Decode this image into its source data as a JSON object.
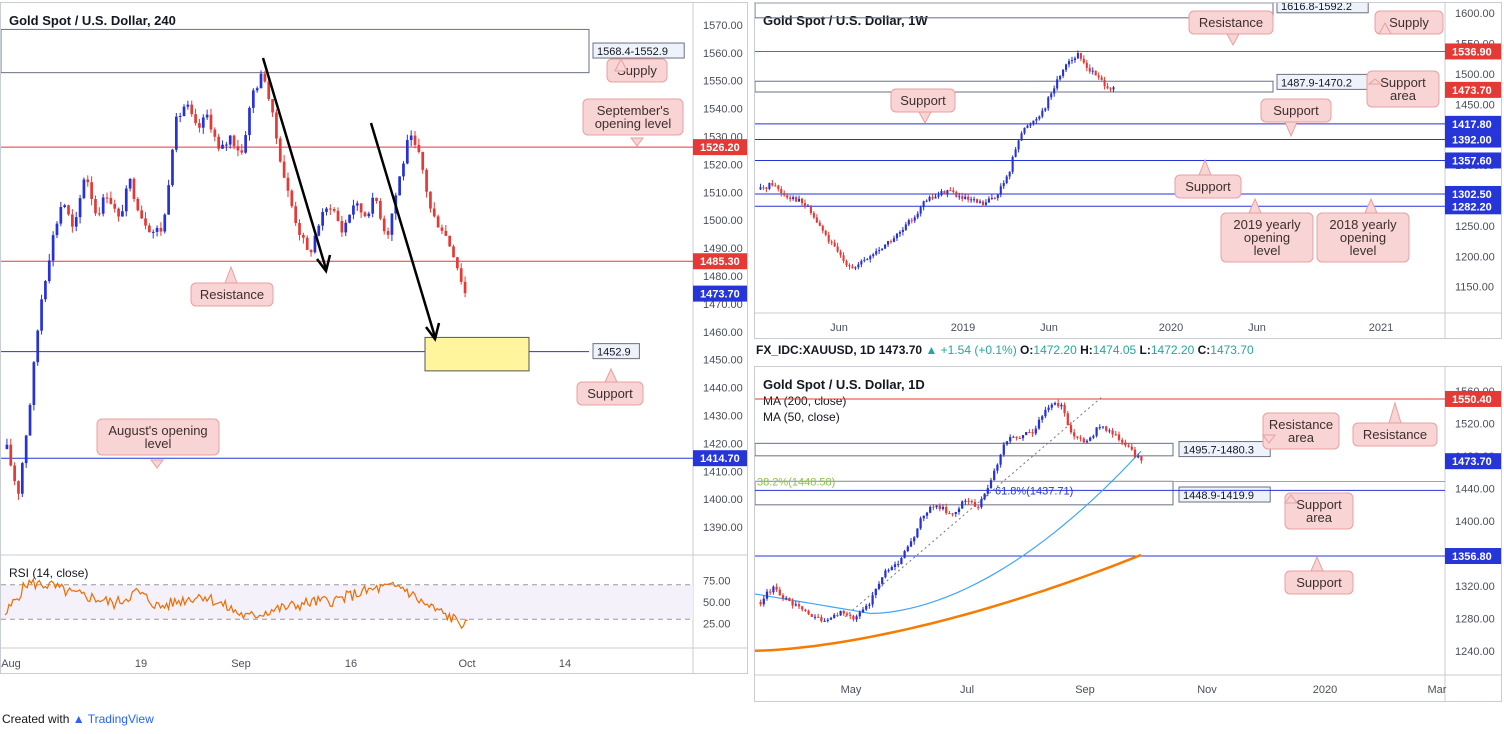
{
  "footer": {
    "created_with": "Created with",
    "brand": "TradingView"
  },
  "info_line": {
    "symbol": "FX_IDC:XAUUSD, 1D",
    "last": "1473.70",
    "change": "▲ +1.54 (+0.1%)",
    "o_label": "O:",
    "o": "1472.20",
    "h_label": "H:",
    "h": "1474.05",
    "l_label": "L:",
    "l": "1472.20",
    "c_label": "C:",
    "c": "1473.70"
  },
  "colors": {
    "red_line": "#e53935",
    "blue_line": "#2635d8",
    "up_candle": "#2631d6",
    "down_candle": "#e53935",
    "ann_fill": "#f8d4d4",
    "ann_stroke": "#e8a0a0",
    "rsi": "#ef6c00",
    "ma200": "#f57c00",
    "ma50": "#42a5f5",
    "fib": "#8bc34a",
    "highlight": "#fff59d"
  },
  "chart_data": [
    {
      "id": "h4",
      "type": "candlestick",
      "title": "Gold Spot / U.S. Dollar, 240",
      "ylim": [
        1380,
        1575
      ],
      "y_ticks": [
        "1570.00",
        "1560.00",
        "1550.00",
        "1540.00",
        "1530.00",
        "1520.00",
        "1510.00",
        "1500.00",
        "1490.00",
        "1480.00",
        "1470.00",
        "1460.00",
        "1450.00",
        "1440.00",
        "1430.00",
        "1420.00",
        "1410.00",
        "1400.00",
        "1390.00"
      ],
      "x_ticks": [
        "Aug",
        "19",
        "Sep",
        "16",
        "Oct",
        "14"
      ],
      "path": [
        1418,
        1402,
        1432,
        1470,
        1492,
        1508,
        1495,
        1518,
        1502,
        1510,
        1500,
        1514,
        1502,
        1496,
        1497,
        1534,
        1542,
        1532,
        1538,
        1524,
        1530,
        1524,
        1546,
        1553,
        1532,
        1512,
        1498,
        1487,
        1500,
        1506,
        1496,
        1506,
        1502,
        1508,
        1494,
        1513,
        1530,
        1522,
        1502,
        1497,
        1488,
        1474
      ],
      "last_price": "1473.70",
      "levels": [
        {
          "price": 1526.2,
          "label": "1526.20",
          "color": "red"
        },
        {
          "price": 1485.3,
          "label": "1485.30",
          "color": "red"
        },
        {
          "price": 1452.9,
          "label": "1452.9",
          "color": "blue",
          "box": true
        },
        {
          "price": 1414.7,
          "label": "1414.70",
          "color": "blue"
        }
      ],
      "zones": [
        {
          "label": "1568.4-1552.9",
          "low": 1552.9,
          "high": 1568.4
        }
      ],
      "annotations": [
        "Supply",
        "September's opening level",
        "Resistance",
        "Support",
        "August's opening level"
      ],
      "rsi": {
        "label": "RSI (14, close)",
        "ticks": [
          "75.00",
          "50.00",
          "25.00"
        ],
        "levels": [
          70,
          30
        ]
      }
    },
    {
      "id": "weekly",
      "type": "candlestick",
      "title": "Gold Spot / U.S. Dollar, 1W",
      "ylim": [
        1110,
        1610
      ],
      "y_ticks": [
        "1600.00",
        "1550.00",
        "1500.00",
        "1450.00",
        "1400.00",
        "1350.00",
        "1300.00",
        "1250.00",
        "1200.00",
        "1150.00"
      ],
      "x_ticks": [
        "Jun",
        "2019",
        "Jun",
        "2020",
        "Jun",
        "2021"
      ],
      "path": [
        1310,
        1320,
        1302,
        1295,
        1280,
        1250,
        1220,
        1195,
        1180,
        1195,
        1210,
        1225,
        1240,
        1265,
        1290,
        1300,
        1310,
        1295,
        1290,
        1285,
        1300,
        1330,
        1400,
        1420,
        1440,
        1480,
        1520,
        1530,
        1506,
        1488,
        1473
      ],
      "last_price": "1473.70",
      "levels": [
        {
          "price": 1536.9,
          "label": "1536.90",
          "color": "red"
        },
        {
          "price": 1417.8,
          "label": "1417.80",
          "color": "blue"
        },
        {
          "price": 1392.0,
          "label": "1392.00",
          "color": "blue"
        },
        {
          "price": 1357.6,
          "label": "1357.60",
          "color": "blue"
        },
        {
          "price": 1302.5,
          "label": "1302.50",
          "color": "blue"
        },
        {
          "price": 1282.2,
          "label": "1282.20",
          "color": "blue"
        }
      ],
      "zones": [
        {
          "label": "1616.8-1592.2",
          "low": 1592.2,
          "high": 1616.8
        },
        {
          "label": "1487.9-1470.2",
          "low": 1470.2,
          "high": 1487.9
        }
      ],
      "annotations": [
        "Resistance",
        "Supply",
        "Support area",
        "Support",
        "Support",
        "Support",
        "2019 yearly opening level",
        "2018 yearly opening level"
      ]
    },
    {
      "id": "daily",
      "type": "candlestick",
      "title": "Gold Spot / U.S. Dollar, 1D",
      "ylim": [
        1220,
        1575
      ],
      "y_ticks": [
        "1560.00",
        "1520.00",
        "1480.00",
        "1440.00",
        "1400.00",
        "1360.00",
        "1320.00",
        "1280.00",
        "1240.00"
      ],
      "x_ticks": [
        "May",
        "Jul",
        "Sep",
        "Nov",
        "2020",
        "Mar"
      ],
      "legend": [
        "MA (200, close)",
        "MA (50, close)"
      ],
      "path": [
        1300,
        1320,
        1300,
        1290,
        1282,
        1275,
        1290,
        1278,
        1300,
        1335,
        1345,
        1370,
        1410,
        1420,
        1405,
        1425,
        1418,
        1450,
        1500,
        1505,
        1510,
        1540,
        1545,
        1505,
        1498,
        1520,
        1505,
        1490,
        1473
      ],
      "last_price": "1473.70",
      "levels": [
        {
          "price": 1550.4,
          "label": "1550.40",
          "color": "red"
        },
        {
          "price": 1356.8,
          "label": "1356.80",
          "color": "blue"
        }
      ],
      "zones": [
        {
          "label": "1495.7-1480.3",
          "low": 1480.3,
          "high": 1495.7
        },
        {
          "label": "1448.9-1419.9",
          "low": 1419.9,
          "high": 1448.9
        }
      ],
      "fib": [
        {
          "label": "38.2%(1448.58)",
          "price": 1448.58
        },
        {
          "label": "61.8%(1437.71)",
          "price": 1437.71
        }
      ],
      "annotations": [
        "Resistance area",
        "Resistance",
        "Support area",
        "Support"
      ]
    }
  ]
}
